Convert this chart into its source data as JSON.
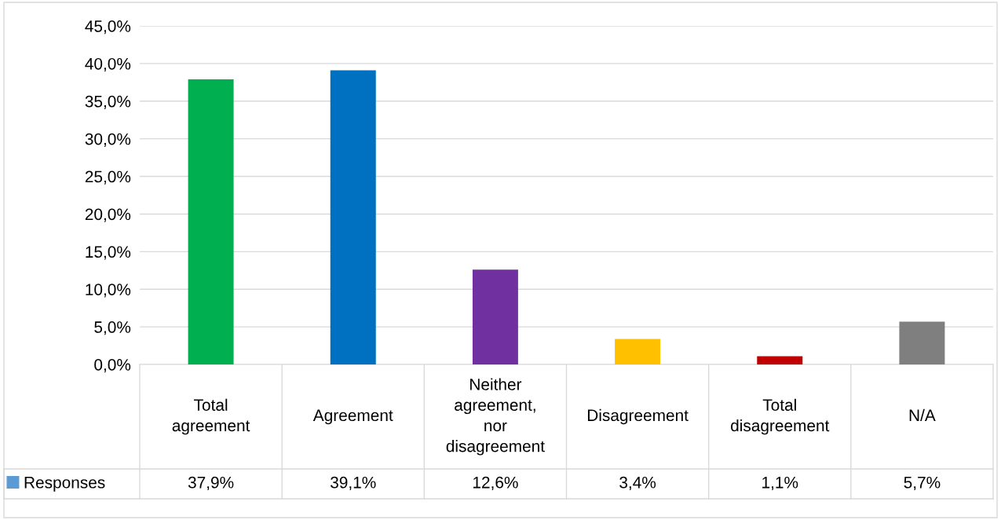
{
  "chart_data": {
    "type": "bar",
    "categories": [
      "Total agreement",
      "Agreement",
      "Neither agreement, nor disagreement",
      "Disagreement",
      "Total disagreement",
      "N/A"
    ],
    "series": [
      {
        "name": "Responses",
        "color": "#5b9bd5",
        "colors": [
          "#00b050",
          "#0070c0",
          "#7030a0",
          "#ffc000",
          "#c00000",
          "#7f7f7f"
        ],
        "values": [
          37.9,
          39.1,
          12.6,
          3.4,
          1.1,
          5.7
        ],
        "value_labels": [
          "37,9%",
          "39,1%",
          "12,6%",
          "3,4%",
          "1,1%",
          "5,7%"
        ]
      }
    ],
    "ylim": [
      0,
      45
    ],
    "yticks": [
      {
        "value": 0,
        "label": "0,0%"
      },
      {
        "value": 5,
        "label": "5,0%"
      },
      {
        "value": 10,
        "label": "10,0%"
      },
      {
        "value": 15,
        "label": "15,0%"
      },
      {
        "value": 20,
        "label": "20,0%"
      },
      {
        "value": 25,
        "label": "25,0%"
      },
      {
        "value": 30,
        "label": "30,0%"
      },
      {
        "value": 35,
        "label": "35,0%"
      },
      {
        "value": 40,
        "label": "40,0%"
      },
      {
        "value": 45,
        "label": "45,0%"
      }
    ],
    "grid": "y",
    "legend": "bottom left"
  }
}
